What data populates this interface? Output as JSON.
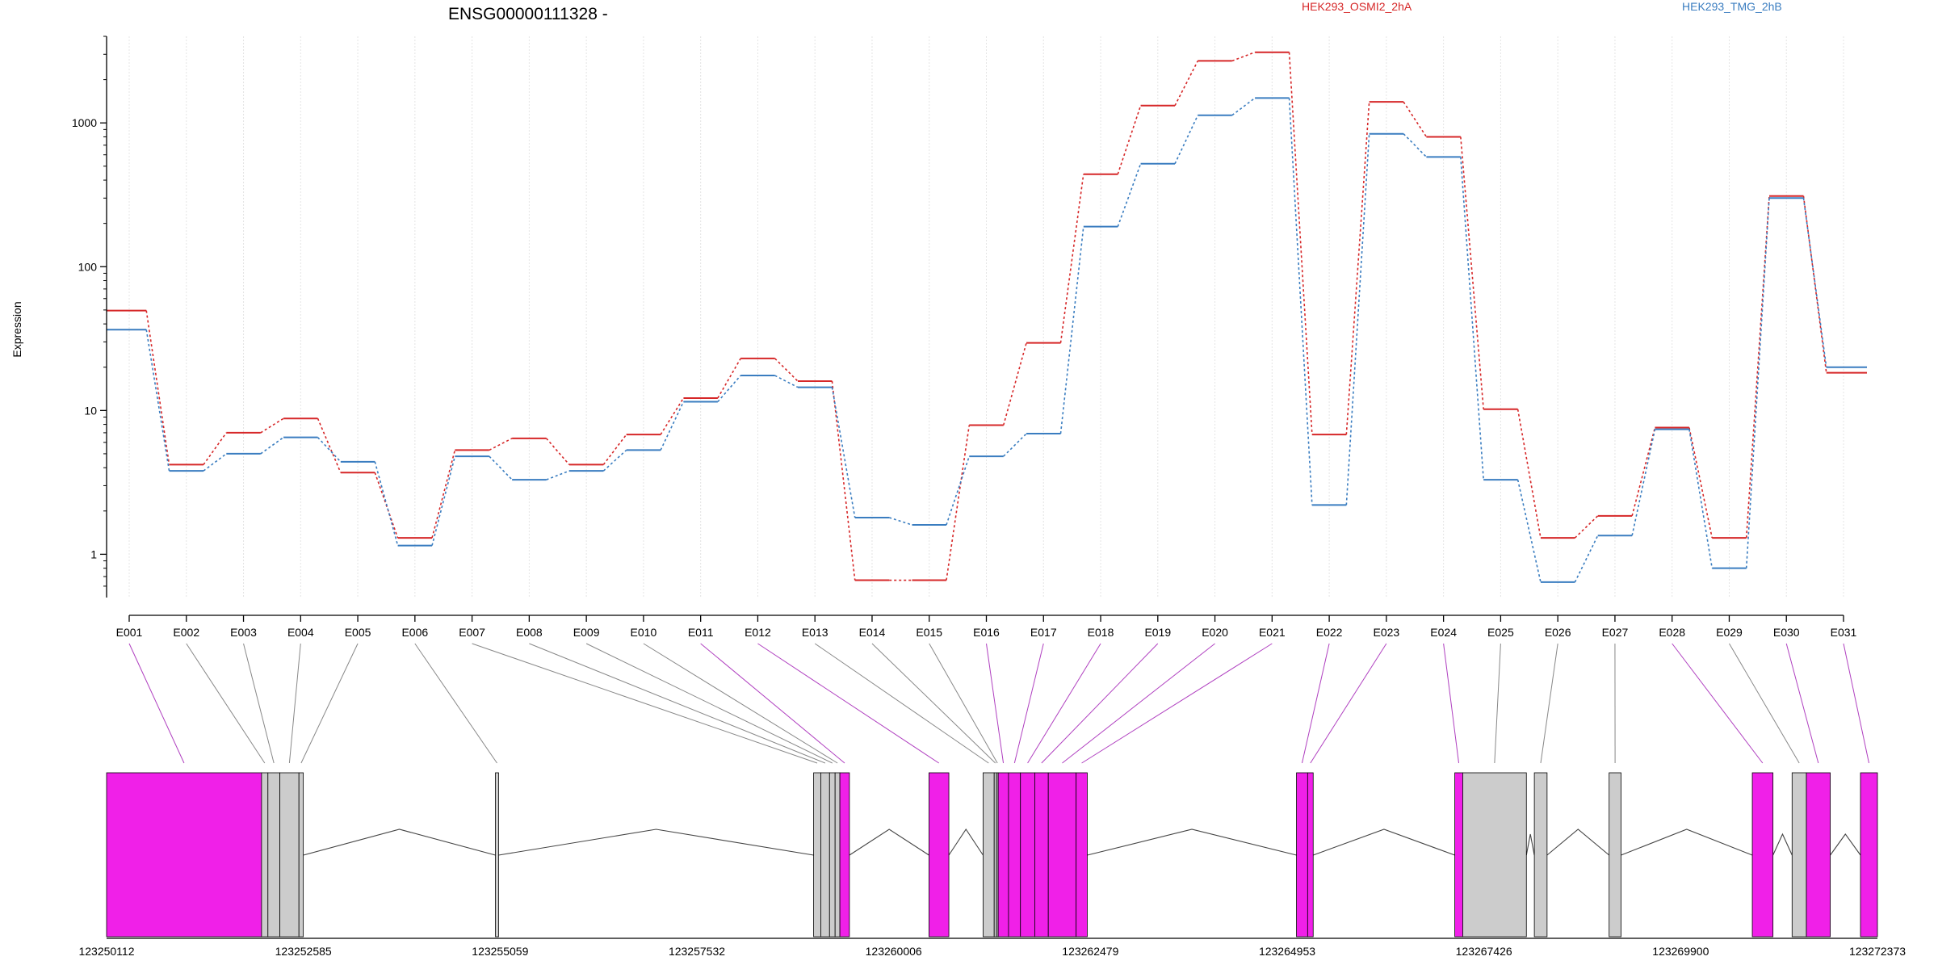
{
  "chart_data": {
    "type": "line",
    "title": "ENSG00000111328 -",
    "ylabel": "Expression",
    "yscale": "log",
    "ylim": [
      0.5,
      4000
    ],
    "yticks": [
      "1",
      "10",
      "100",
      "1000"
    ],
    "legend_placement": "top",
    "categories": [
      "E001",
      "E002",
      "E003",
      "E004",
      "E005",
      "E006",
      "E007",
      "E008",
      "E009",
      "E010",
      "E011",
      "E012",
      "E013",
      "E014",
      "E015",
      "E016",
      "E017",
      "E018",
      "E019",
      "E020",
      "E021",
      "E022",
      "E023",
      "E024",
      "E025",
      "E026",
      "E027",
      "E028",
      "E029",
      "E030",
      "E031"
    ],
    "series": [
      {
        "name": "HEK293_OSMI2_2hA",
        "color": "#d62728",
        "values": [
          49.5,
          4.2,
          7.0,
          8.8,
          3.7,
          1.3,
          5.3,
          6.4,
          4.2,
          6.8,
          12.2,
          23.0,
          16.0,
          0.66,
          0.66,
          7.9,
          29.5,
          440,
          1320,
          2700,
          3100,
          6.8,
          1400,
          800,
          10.2,
          1.3,
          1.85,
          7.6,
          1.3,
          310,
          18.3
        ]
      },
      {
        "name": "HEK293_TMG_2hB",
        "color": "#3a7dc0",
        "values": [
          36.5,
          3.8,
          5.0,
          6.5,
          4.4,
          1.15,
          4.8,
          3.3,
          3.8,
          5.3,
          11.5,
          17.5,
          14.5,
          1.8,
          1.6,
          4.8,
          6.9,
          190,
          520,
          1130,
          1490,
          2.2,
          840,
          580,
          3.3,
          0.64,
          1.35,
          7.4,
          0.8,
          300,
          20.0
        ]
      }
    ],
    "genomic_axis": {
      "start": 123250112,
      "end": 123272373,
      "tick_labels": [
        "123250112",
        "123252585",
        "123255059",
        "123257532",
        "123260006",
        "123262479",
        "123264953",
        "123267426",
        "123269900",
        "123272373"
      ]
    },
    "exons": [
      {
        "id": "E001",
        "start": 123250112,
        "end": 123252060,
        "color": "#f020e8"
      },
      {
        "id": "E002",
        "start": 123252060,
        "end": 123252140,
        "color": "#cccccc"
      },
      {
        "id": "E003",
        "start": 123252140,
        "end": 123252290,
        "color": "#cccccc"
      },
      {
        "id": "E004",
        "start": 123252290,
        "end": 123252530,
        "color": "#cccccc"
      },
      {
        "id": "E005",
        "start": 123252530,
        "end": 123252585,
        "color": "#cccccc"
      },
      {
        "id": "E006",
        "start": 123255000,
        "end": 123255040,
        "color": "#cccccc"
      },
      {
        "id": "E007",
        "start": 123259000,
        "end": 123259090,
        "color": "#cccccc"
      },
      {
        "id": "E008",
        "start": 123259090,
        "end": 123259200,
        "color": "#cccccc"
      },
      {
        "id": "E009",
        "start": 123259200,
        "end": 123259270,
        "color": "#cccccc"
      },
      {
        "id": "E010",
        "start": 123259270,
        "end": 123259330,
        "color": "#cccccc"
      },
      {
        "id": "E011",
        "start": 123259330,
        "end": 123259450,
        "color": "#f020e8"
      },
      {
        "id": "E012",
        "start": 123260450,
        "end": 123260700,
        "color": "#f020e8"
      },
      {
        "id": "E013",
        "start": 123261130,
        "end": 123261270,
        "color": "#cccccc"
      },
      {
        "id": "E014",
        "start": 123261270,
        "end": 123261300,
        "color": "#cccccc"
      },
      {
        "id": "E015",
        "start": 123261300,
        "end": 123261320,
        "color": "#cccccc"
      },
      {
        "id": "E016",
        "start": 123261320,
        "end": 123261450,
        "color": "#f020e8"
      },
      {
        "id": "E017",
        "start": 123261450,
        "end": 123261600,
        "color": "#f020e8"
      },
      {
        "id": "E018",
        "start": 123261600,
        "end": 123261780,
        "color": "#f020e8"
      },
      {
        "id": "E019",
        "start": 123261780,
        "end": 123261950,
        "color": "#f020e8"
      },
      {
        "id": "E020",
        "start": 123261950,
        "end": 123262300,
        "color": "#f020e8"
      },
      {
        "id": "E021",
        "start": 123262300,
        "end": 123262440,
        "color": "#f020e8"
      },
      {
        "id": "E022",
        "start": 123265070,
        "end": 123265210,
        "color": "#f020e8"
      },
      {
        "id": "E023",
        "start": 123265210,
        "end": 123265280,
        "color": "#f020e8"
      },
      {
        "id": "E024",
        "start": 123267060,
        "end": 123267160,
        "color": "#f020e8"
      },
      {
        "id": "E025",
        "start": 123267160,
        "end": 123267960,
        "color": "#cccccc"
      },
      {
        "id": "E026",
        "start": 123268060,
        "end": 123268220,
        "color": "#cccccc"
      },
      {
        "id": "E027",
        "start": 123269000,
        "end": 123269150,
        "color": "#cccccc"
      },
      {
        "id": "E028",
        "start": 123270800,
        "end": 123271060,
        "color": "#f020e8"
      },
      {
        "id": "E029",
        "start": 123271300,
        "end": 123271480,
        "color": "#cccccc"
      },
      {
        "id": "E030",
        "start": 123271480,
        "end": 123271780,
        "color": "#f020e8"
      },
      {
        "id": "E031",
        "start": 123272160,
        "end": 123272373,
        "color": "#f020e8"
      }
    ]
  }
}
